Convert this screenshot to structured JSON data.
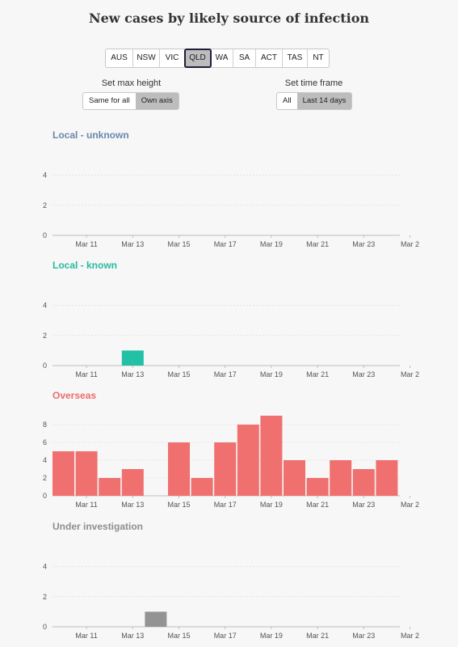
{
  "title": "New cases by likely source of infection",
  "states": {
    "items": [
      "AUS",
      "NSW",
      "VIC",
      "QLD",
      "WA",
      "SA",
      "ACT",
      "TAS",
      "NT"
    ],
    "selected": "QLD"
  },
  "max_height": {
    "label": "Set max height",
    "options": [
      "Same for all",
      "Own axis"
    ],
    "selected": "Own axis"
  },
  "time_frame": {
    "label": "Set time frame",
    "options": [
      "All",
      "Last 14 days"
    ],
    "selected": "Last 14 days"
  },
  "chart_data": [
    {
      "type": "bar",
      "title": "Local - unknown",
      "color": "#6a86b0",
      "bar_color": "#6a86b0",
      "categories": [
        "Mar 10",
        "Mar 11",
        "Mar 12",
        "Mar 13",
        "Mar 14",
        "Mar 15",
        "Mar 16",
        "Mar 17",
        "Mar 18",
        "Mar 19",
        "Mar 20",
        "Mar 21",
        "Mar 22",
        "Mar 23",
        "Mar 24"
      ],
      "values": [
        0,
        0,
        0,
        0,
        0,
        0,
        0,
        0,
        0,
        0,
        0,
        0,
        0,
        0,
        0
      ],
      "ylim": [
        0,
        5
      ],
      "yticks": [
        0,
        2,
        4
      ],
      "xtick_labels": [
        "Mar 11",
        "Mar 13",
        "Mar 15",
        "Mar 17",
        "Mar 19",
        "Mar 21",
        "Mar 23",
        "Mar 2"
      ]
    },
    {
      "type": "bar",
      "title": "Local - known",
      "color": "#2ab9a0",
      "bar_color": "#22c0a5",
      "categories": [
        "Mar 10",
        "Mar 11",
        "Mar 12",
        "Mar 13",
        "Mar 14",
        "Mar 15",
        "Mar 16",
        "Mar 17",
        "Mar 18",
        "Mar 19",
        "Mar 20",
        "Mar 21",
        "Mar 22",
        "Mar 23",
        "Mar 24"
      ],
      "values": [
        0,
        0,
        0,
        1,
        0,
        0,
        0,
        0,
        0,
        0,
        0,
        0,
        0,
        0,
        0
      ],
      "ylim": [
        0,
        5
      ],
      "yticks": [
        0,
        2,
        4
      ],
      "xtick_labels": [
        "Mar 11",
        "Mar 13",
        "Mar 15",
        "Mar 17",
        "Mar 19",
        "Mar 21",
        "Mar 23",
        "Mar 2"
      ]
    },
    {
      "type": "bar",
      "title": "Overseas",
      "color": "#ef6b6b",
      "bar_color": "#f07070",
      "categories": [
        "Mar 10",
        "Mar 11",
        "Mar 12",
        "Mar 13",
        "Mar 14",
        "Mar 15",
        "Mar 16",
        "Mar 17",
        "Mar 18",
        "Mar 19",
        "Mar 20",
        "Mar 21",
        "Mar 22",
        "Mar 23",
        "Mar 24"
      ],
      "values": [
        5,
        5,
        2,
        3,
        0,
        6,
        2,
        6,
        8,
        9,
        4,
        2,
        4,
        3,
        4
      ],
      "ylim": [
        0,
        10
      ],
      "yticks": [
        0,
        2,
        4,
        6,
        8
      ],
      "xtick_labels": [
        "Mar 11",
        "Mar 13",
        "Mar 15",
        "Mar 17",
        "Mar 19",
        "Mar 21",
        "Mar 23",
        "Mar 2"
      ]
    },
    {
      "type": "bar",
      "title": "Under investigation",
      "color": "#8e8e8e",
      "bar_color": "#939393",
      "categories": [
        "Mar 10",
        "Mar 11",
        "Mar 12",
        "Mar 13",
        "Mar 14",
        "Mar 15",
        "Mar 16",
        "Mar 17",
        "Mar 18",
        "Mar 19",
        "Mar 20",
        "Mar 21",
        "Mar 22",
        "Mar 23",
        "Mar 24"
      ],
      "values": [
        0,
        0,
        0,
        0,
        1,
        0,
        0,
        0,
        0,
        0,
        0,
        0,
        0,
        0,
        0
      ],
      "ylim": [
        0,
        5
      ],
      "yticks": [
        0,
        2,
        4
      ],
      "xtick_labels": [
        "Mar 11",
        "Mar 13",
        "Mar 15",
        "Mar 17",
        "Mar 19",
        "Mar 21",
        "Mar 23",
        "Mar 2"
      ]
    }
  ]
}
